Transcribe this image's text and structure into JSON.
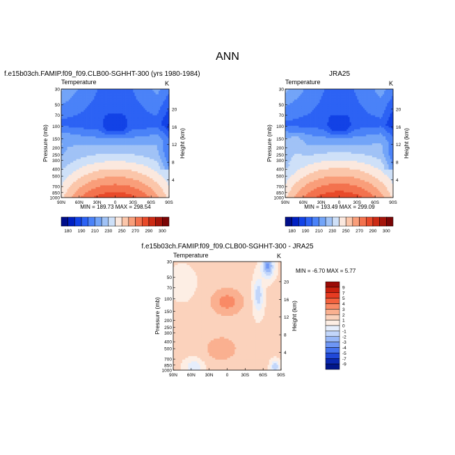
{
  "figure": {
    "title": "ANN"
  },
  "chart_data": [
    {
      "type": "heatmap",
      "title": "f.e15b03ch.FAMIP.f09_f09.CLB00-SGHHT-300 (yrs 1980-1984)",
      "left_label": "Temperature",
      "right_label": "K",
      "xlabel": "",
      "ylabel": "Pressure (mb)",
      "ylabel_right": "Height (km)",
      "x_ticks": [
        "90N",
        "60N",
        "30N",
        "0",
        "30S",
        "60S",
        "90S"
      ],
      "y_ticks": [
        "30",
        "50",
        "70",
        "100",
        "150",
        "200",
        "250",
        "300",
        "400",
        "500",
        "700",
        "850",
        "1000"
      ],
      "height_ticks": [
        "4",
        "8",
        "12",
        "16",
        "20"
      ],
      "stats": "MIN = 189.73   MAX = 298.54",
      "min": 189.73,
      "max": 298.54,
      "colorbar": {
        "orientation": "horizontal",
        "labels": [
          "180",
          "190",
          "210",
          "230",
          "250",
          "270",
          "290",
          "300"
        ],
        "colors": [
          "#000e8a",
          "#0020c2",
          "#1242e6",
          "#2c62f4",
          "#4a82f8",
          "#72a4f8",
          "#a0c2f6",
          "#cee0f8",
          "#fbe8de",
          "#fbc6aa",
          "#f99e7a",
          "#f3724e",
          "#e84a2a",
          "#cc2a14",
          "#a4140a",
          "#7a0505"
        ]
      },
      "field": "model"
    },
    {
      "type": "heatmap",
      "title": "JRA25",
      "left_label": "Temperature",
      "right_label": "K",
      "xlabel": "",
      "ylabel": "Pressure (mb)",
      "ylabel_right": "Height (km)",
      "x_ticks": [
        "90N",
        "60N",
        "30N",
        "0",
        "30S",
        "60S",
        "90S"
      ],
      "y_ticks": [
        "30",
        "50",
        "70",
        "100",
        "150",
        "200",
        "250",
        "300",
        "400",
        "500",
        "700",
        "850",
        "1000"
      ],
      "height_ticks": [
        "4",
        "8",
        "12",
        "16",
        "20"
      ],
      "stats": "MIN = 193.49   MAX = 299.09",
      "min": 193.49,
      "max": 299.09,
      "colorbar": {
        "orientation": "horizontal",
        "labels": [
          "180",
          "190",
          "210",
          "230",
          "250",
          "270",
          "290",
          "300"
        ],
        "colors": [
          "#000e8a",
          "#0020c2",
          "#1242e6",
          "#2c62f4",
          "#4a82f8",
          "#72a4f8",
          "#a0c2f6",
          "#cee0f8",
          "#fbe8de",
          "#fbc6aa",
          "#f99e7a",
          "#f3724e",
          "#e84a2a",
          "#cc2a14",
          "#a4140a",
          "#7a0505"
        ]
      },
      "field": "obs"
    },
    {
      "type": "heatmap",
      "title": "f.e15b03ch.FAMIP.f09_f09.CLB00-SGHHT-300 - JRA25",
      "left_label": "Temperature",
      "right_label": "K",
      "xlabel": "",
      "ylabel": "Pressure (mb)",
      "ylabel_right": "Height (km)",
      "x_ticks": [
        "90N",
        "60N",
        "30N",
        "0",
        "30S",
        "60S",
        "90S"
      ],
      "y_ticks": [
        "30",
        "50",
        "70",
        "100",
        "150",
        "200",
        "250",
        "300",
        "400",
        "500",
        "700",
        "850",
        "1000"
      ],
      "height_ticks": [
        "4",
        "8",
        "12",
        "16",
        "20"
      ],
      "stats": "MIN =  -6.70   MAX =   5.77",
      "min": -6.7,
      "max": 5.77,
      "colorbar": {
        "orientation": "vertical",
        "labels": [
          "9",
          "7",
          "5",
          "4",
          "3",
          "2",
          "1",
          "0",
          "-1",
          "-2",
          "-3",
          "-4",
          "-5",
          "-7",
          "-9"
        ],
        "colors": [
          "#9a0a06",
          "#c8200e",
          "#e63c22",
          "#f4623e",
          "#f98a66",
          "#fab090",
          "#fbd2bc",
          "#fdeee4",
          "#e6eefc",
          "#c2d6fa",
          "#98b8f8",
          "#6e96f4",
          "#4472ee",
          "#2048d8",
          "#0a28b0",
          "#00168a"
        ]
      },
      "field": "diff"
    }
  ]
}
